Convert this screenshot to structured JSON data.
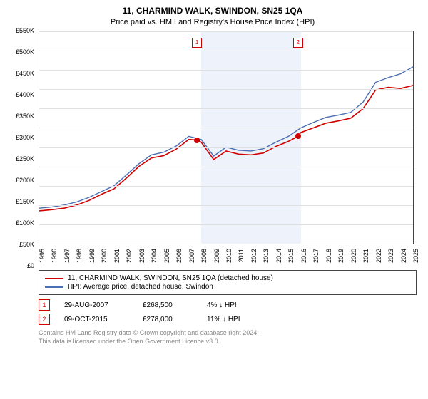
{
  "title_line1": "11, CHARMIND WALK, SWINDON, SN25 1QA",
  "title_line2": "Price paid vs. HM Land Registry's House Price Index (HPI)",
  "chart": {
    "type": "line",
    "background_color": "#ffffff",
    "grid_color": "#e0e0e0",
    "border_color": "#444444",
    "band_color": "#eef2fa",
    "x_min": 1995,
    "x_max": 2025,
    "y_min": 0,
    "y_max": 550000,
    "y_ticks": [
      0,
      50000,
      100000,
      150000,
      200000,
      250000,
      300000,
      350000,
      400000,
      450000,
      500000,
      550000
    ],
    "y_tick_labels": [
      "£0",
      "£50K",
      "£100K",
      "£150K",
      "£200K",
      "£250K",
      "£300K",
      "£350K",
      "£400K",
      "£450K",
      "£500K",
      "£550K"
    ],
    "x_ticks": [
      1995,
      1996,
      1997,
      1998,
      1999,
      2000,
      2001,
      2002,
      2003,
      2004,
      2005,
      2006,
      2007,
      2008,
      2009,
      2010,
      2011,
      2012,
      2013,
      2014,
      2015,
      2016,
      2017,
      2018,
      2019,
      2020,
      2021,
      2022,
      2023,
      2024,
      2025
    ],
    "band_years": [
      2008,
      2009,
      2010,
      2011,
      2012,
      2013,
      2014,
      2015
    ],
    "series": [
      {
        "name": "price_paid",
        "color": "#d00000",
        "width": 1.6,
        "points": [
          [
            1995,
            85000
          ],
          [
            1996,
            88000
          ],
          [
            1997,
            92000
          ],
          [
            1998,
            100000
          ],
          [
            1999,
            112000
          ],
          [
            2000,
            128000
          ],
          [
            2001,
            142000
          ],
          [
            2002,
            170000
          ],
          [
            2003,
            200000
          ],
          [
            2004,
            222000
          ],
          [
            2005,
            228000
          ],
          [
            2006,
            245000
          ],
          [
            2007,
            270000
          ],
          [
            2007.66,
            268500
          ],
          [
            2008,
            263000
          ],
          [
            2009,
            218000
          ],
          [
            2010,
            240000
          ],
          [
            2011,
            232000
          ],
          [
            2012,
            230000
          ],
          [
            2013,
            235000
          ],
          [
            2014,
            252000
          ],
          [
            2015,
            265000
          ],
          [
            2015.77,
            278000
          ],
          [
            2016,
            288000
          ],
          [
            2017,
            300000
          ],
          [
            2018,
            312000
          ],
          [
            2019,
            318000
          ],
          [
            2020,
            325000
          ],
          [
            2021,
            350000
          ],
          [
            2022,
            398000
          ],
          [
            2023,
            405000
          ],
          [
            2024,
            402000
          ],
          [
            2025,
            410000
          ]
        ]
      },
      {
        "name": "hpi",
        "color": "#4a6fb3",
        "width": 1.4,
        "points": [
          [
            1995,
            92000
          ],
          [
            1996,
            95000
          ],
          [
            1997,
            100000
          ],
          [
            1998,
            108000
          ],
          [
            1999,
            120000
          ],
          [
            2000,
            135000
          ],
          [
            2001,
            150000
          ],
          [
            2002,
            178000
          ],
          [
            2003,
            207000
          ],
          [
            2004,
            230000
          ],
          [
            2005,
            237000
          ],
          [
            2006,
            253000
          ],
          [
            2007,
            278000
          ],
          [
            2008,
            270000
          ],
          [
            2009,
            227000
          ],
          [
            2010,
            250000
          ],
          [
            2011,
            242000
          ],
          [
            2012,
            240000
          ],
          [
            2013,
            246000
          ],
          [
            2014,
            263000
          ],
          [
            2015,
            278000
          ],
          [
            2016,
            300000
          ],
          [
            2017,
            314000
          ],
          [
            2018,
            327000
          ],
          [
            2019,
            333000
          ],
          [
            2020,
            340000
          ],
          [
            2021,
            367000
          ],
          [
            2022,
            418000
          ],
          [
            2023,
            430000
          ],
          [
            2024,
            440000
          ],
          [
            2025,
            458000
          ]
        ]
      }
    ],
    "markers": [
      {
        "n": "1",
        "x": 2007.66,
        "y": 268500,
        "box_y": 0.03
      },
      {
        "n": "2",
        "x": 2015.77,
        "y": 278000,
        "box_y": 0.03
      }
    ]
  },
  "legend": [
    {
      "color": "#d00000",
      "label": "11, CHARMIND WALK, SWINDON, SN25 1QA (detached house)"
    },
    {
      "color": "#4a6fb3",
      "label": "HPI: Average price, detached house, Swindon"
    }
  ],
  "callouts": [
    {
      "n": "1",
      "date": "29-AUG-2007",
      "price": "£268,500",
      "delta": "4% ↓ HPI"
    },
    {
      "n": "2",
      "date": "09-OCT-2015",
      "price": "£278,000",
      "delta": "11% ↓ HPI"
    }
  ],
  "footnote1": "Contains HM Land Registry data © Crown copyright and database right 2024.",
  "footnote2": "This data is licensed under the Open Government Licence v3.0."
}
